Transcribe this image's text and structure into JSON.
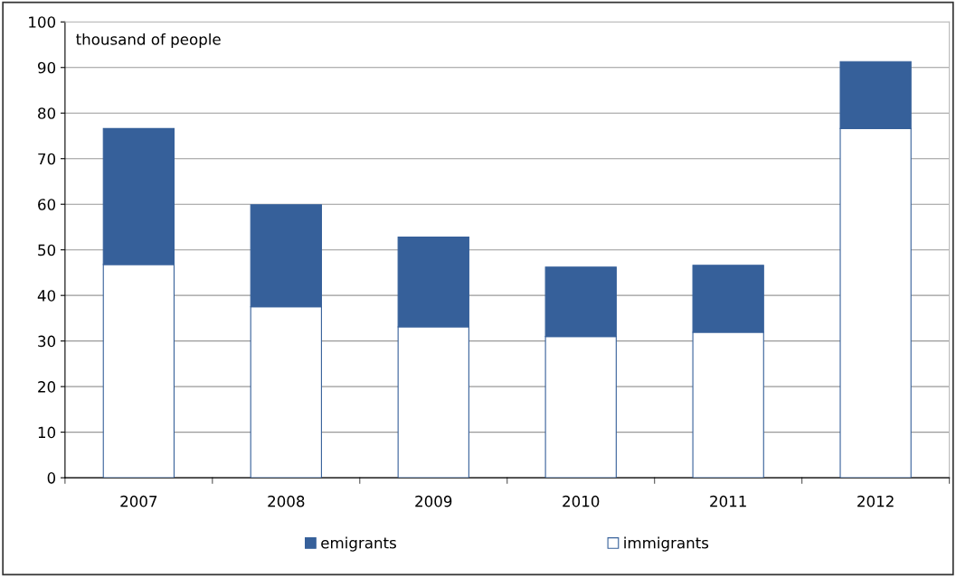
{
  "chart_data": {
    "type": "bar",
    "ylabel": "thousand of people",
    "categories": [
      "2007",
      "2008",
      "2009",
      "2010",
      "2011",
      "2012"
    ],
    "stacked": true,
    "series": [
      {
        "name": "immigrants",
        "color": "#ffffff",
        "values": [
          46.8,
          37.5,
          33.1,
          31.0,
          31.9,
          76.6
        ]
      },
      {
        "name": "emigrants",
        "color": "#36609a",
        "values": [
          29.8,
          22.4,
          19.7,
          15.2,
          14.7,
          14.7
        ]
      }
    ],
    "ylim": [
      0,
      100
    ],
    "yticks": [
      0,
      10,
      20,
      30,
      40,
      50,
      60,
      70,
      80,
      90,
      100
    ],
    "grid": "y",
    "legend": "bottom"
  }
}
